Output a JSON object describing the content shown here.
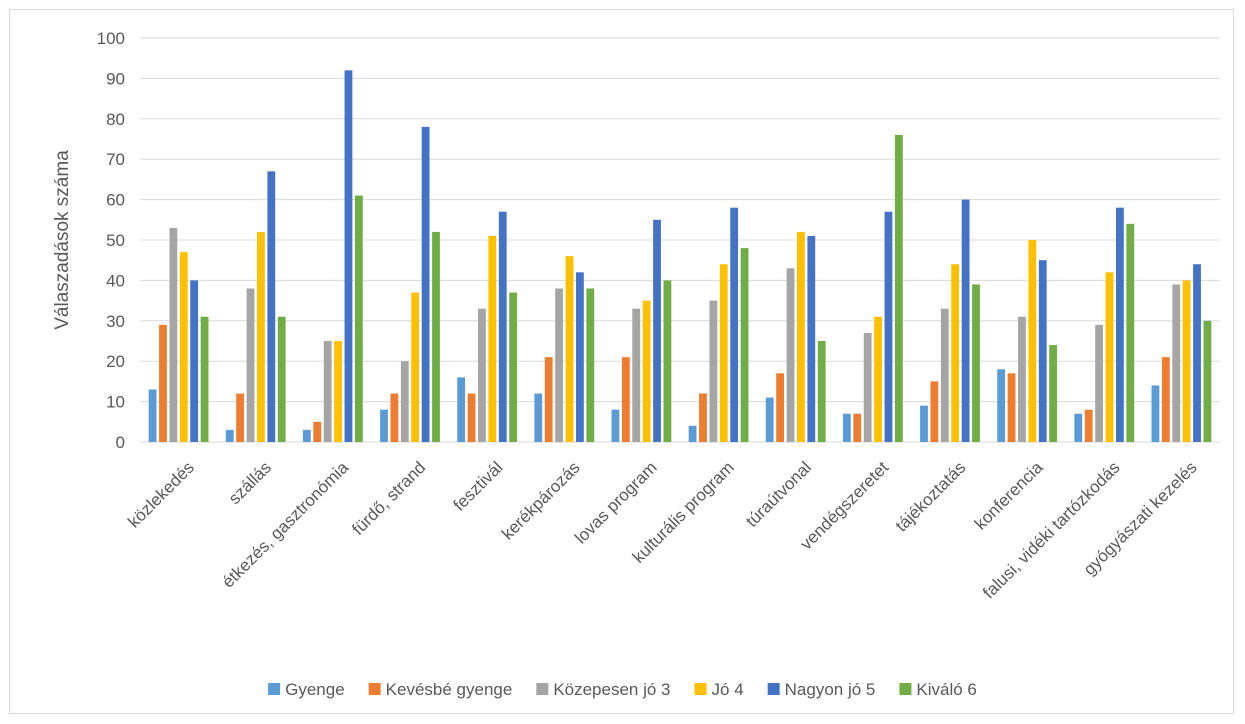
{
  "chart_data": {
    "type": "bar",
    "title": "",
    "xlabel": "",
    "ylabel": "Válaszadások száma",
    "ylim": [
      0,
      100
    ],
    "ytick_step": 10,
    "grid": true,
    "legend_position": "bottom",
    "categories": [
      "közlekedés",
      "szállás",
      "étkezés, gasztronómia",
      "fürdő, strand",
      "fesztivál",
      "kerékpározás",
      "lovas program",
      "kulturális program",
      "túraútvonal",
      "vendégszeretet",
      "tájékoztatás",
      "konferencia",
      "falusi, vidéki tartózkodás",
      "gyógyászati kezelés"
    ],
    "series": [
      {
        "name": "Gyenge",
        "color": "#5b9bd5",
        "values": [
          13,
          3,
          3,
          8,
          16,
          12,
          8,
          4,
          11,
          7,
          9,
          18,
          7,
          14
        ]
      },
      {
        "name": "Kevésbé gyenge",
        "color": "#ed7d31",
        "values": [
          29,
          12,
          5,
          12,
          12,
          21,
          21,
          12,
          17,
          7,
          15,
          17,
          8,
          21
        ]
      },
      {
        "name": "Közepesen jó  3",
        "color": "#a5a5a5",
        "values": [
          53,
          38,
          25,
          20,
          33,
          38,
          33,
          35,
          43,
          27,
          33,
          31,
          29,
          39
        ]
      },
      {
        "name": "Jó 4",
        "color": "#ffc000",
        "values": [
          47,
          52,
          25,
          37,
          51,
          46,
          35,
          44,
          52,
          31,
          44,
          50,
          42,
          40
        ]
      },
      {
        "name": "Nagyon jó  5",
        "color": "#4472c4",
        "values": [
          40,
          67,
          92,
          78,
          57,
          42,
          55,
          58,
          51,
          57,
          60,
          45,
          58,
          44
        ]
      },
      {
        "name": "Kiváló 6",
        "color": "#70ad47",
        "values": [
          31,
          31,
          61,
          52,
          37,
          38,
          40,
          48,
          25,
          76,
          39,
          24,
          54,
          30
        ]
      }
    ]
  }
}
